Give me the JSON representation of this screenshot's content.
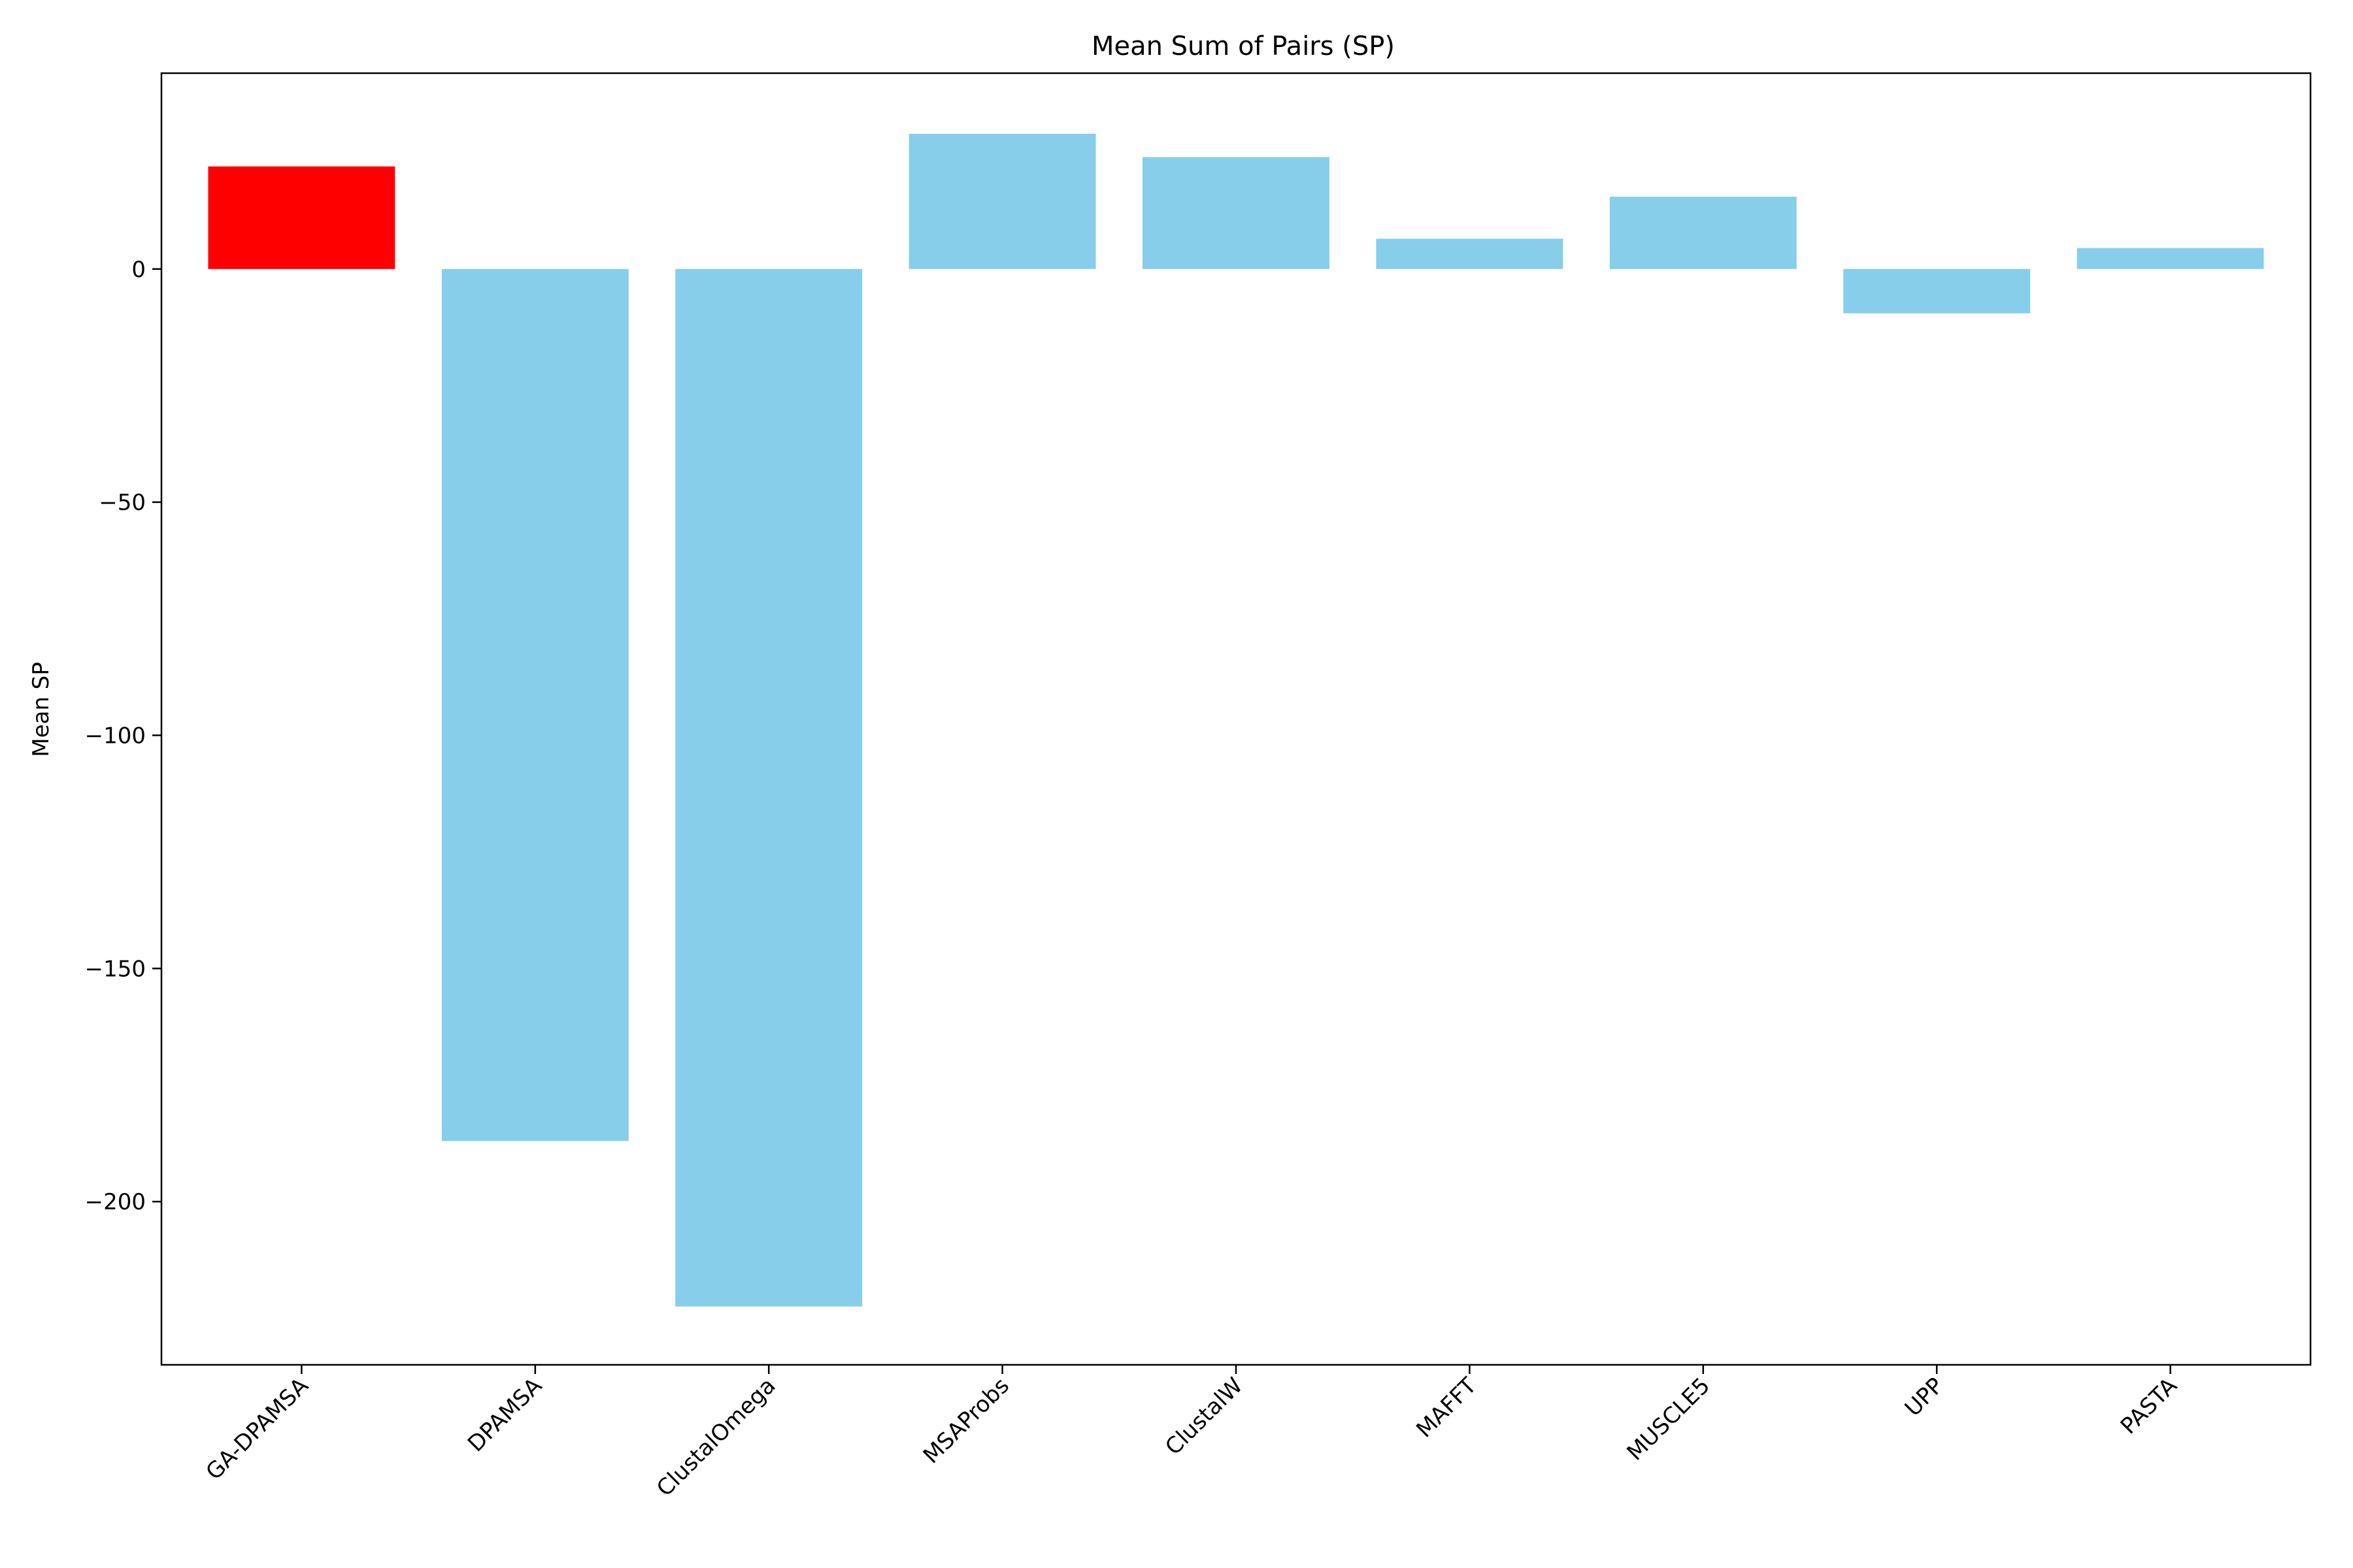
{
  "chart_data": {
    "type": "bar",
    "title": "Mean Sum of Pairs (SP)",
    "xlabel": "",
    "ylabel": "Mean SP",
    "categories": [
      "GA-DPAMSA",
      "DPAMSA",
      "ClustalOmega",
      "MSAProbs",
      "ClustalW",
      "MAFFT",
      "MUSCLE5",
      "UPP",
      "PASTA"
    ],
    "values": [
      22,
      -187,
      -222.5,
      29,
      24,
      6.5,
      15.5,
      -9.5,
      4.5
    ],
    "colors": [
      "#ff0000",
      "#87ceeb",
      "#87ceeb",
      "#87ceeb",
      "#87ceeb",
      "#87ceeb",
      "#87ceeb",
      "#87ceeb",
      "#87ceeb"
    ],
    "ylim": [
      -235,
      42
    ],
    "yticks": [
      0,
      -50,
      -100,
      -150,
      -200
    ],
    "ytick_labels": [
      "0",
      "−50",
      "−100",
      "−150",
      "−200"
    ],
    "grid": false,
    "legend": "none"
  }
}
